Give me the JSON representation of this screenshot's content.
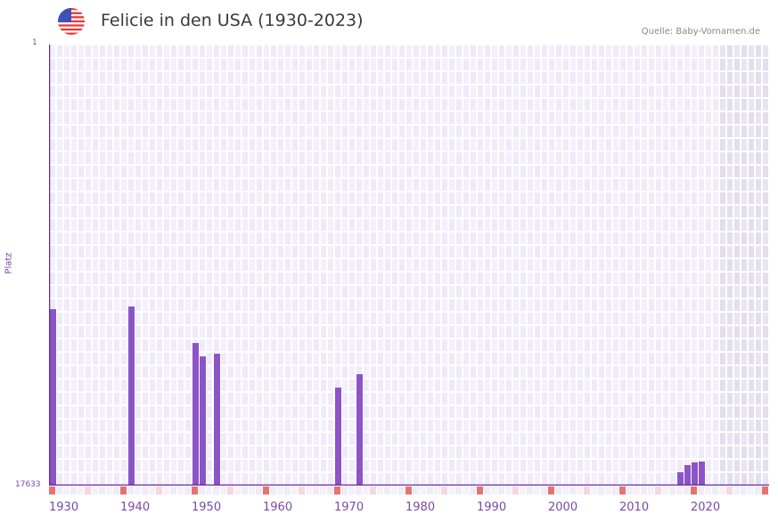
{
  "header": {
    "title": "Felicie in den USA (1930-2023)",
    "source": "Quelle: Baby-Vornamen.de",
    "flag_icon": "usa-flag-icon"
  },
  "colors": {
    "bar": "#8b55c8",
    "axis": "#6a2a9a",
    "cell_a": "#eeeafa",
    "cell_b": "#f3f0fc",
    "future_a": "#e2def0",
    "future_b": "#e8e5f2",
    "marker_decade": "#e57373",
    "marker_half": "#f5d7df"
  },
  "chart_data": {
    "type": "bar",
    "title": "Felicie in den USA (1930-2023)",
    "xlabel": "",
    "ylabel": "Platz",
    "y_axis_inverted": true,
    "ylim": [
      1,
      17633
    ],
    "xlim": [
      1930,
      2030
    ],
    "future_shaded_from": 2024,
    "x_tick_labels": [
      "1930",
      "1940",
      "1950",
      "1960",
      "1970",
      "1980",
      "1990",
      "2000",
      "2010",
      "2020"
    ],
    "y_tick_labels": [
      "1",
      "17633"
    ],
    "x": [
      1930,
      1941,
      1950,
      1951,
      1953,
      1970,
      1973,
      2018,
      2019,
      2020,
      2021
    ],
    "values": [
      10580,
      10473,
      11934,
      12468,
      12361,
      13715,
      13180,
      17099,
      16814,
      16707,
      16671
    ],
    "grid": true,
    "legend": null
  }
}
